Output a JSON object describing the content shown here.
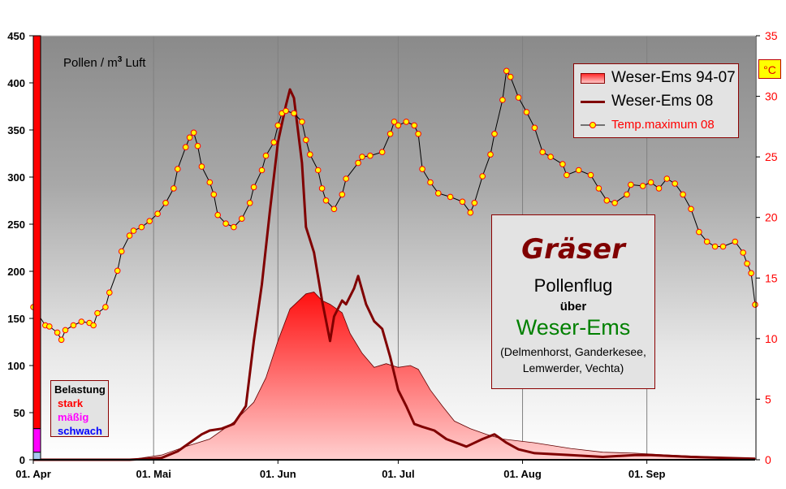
{
  "chart_data": {
    "type": "area+line",
    "ylabel_left": "Pollen / m³ Luft",
    "ylabel_left_parts": {
      "pre": "Pollen / m",
      "sup": "3",
      "post": " Luft"
    },
    "ylim_left": [
      0,
      450
    ],
    "yticks_left": [
      0,
      50,
      100,
      150,
      200,
      250,
      300,
      350,
      400,
      450
    ],
    "ylabel_right": "°C",
    "ylim_right": [
      0,
      35
    ],
    "yticks_right": [
      0,
      5,
      10,
      15,
      20,
      25,
      30,
      35
    ],
    "xlim": [
      "2008-04-01",
      "2008-09-28"
    ],
    "xticks": [
      {
        "date": "2008-04-01",
        "label": "01. Apr"
      },
      {
        "date": "2008-05-01",
        "label": "01. Mai"
      },
      {
        "date": "2008-06-01",
        "label": "01. Jun"
      },
      {
        "date": "2008-07-01",
        "label": "01. Jul"
      },
      {
        "date": "2008-08-01",
        "label": "01. Aug"
      },
      {
        "date": "2008-09-01",
        "label": "01. Sep"
      }
    ],
    "grid": "vertical at month starts",
    "legend_position": "top-right",
    "series": [
      {
        "name": "Weser-Ems 94-07",
        "type": "area",
        "axis": "left",
        "color": "#ff2020",
        "points": [
          [
            "2008-04-01",
            0
          ],
          [
            "2008-04-25",
            0
          ],
          [
            "2008-05-03",
            5
          ],
          [
            "2008-05-09",
            14
          ],
          [
            "2008-05-15",
            22
          ],
          [
            "2008-05-21",
            40
          ],
          [
            "2008-05-26",
            61
          ],
          [
            "2008-05-29",
            87
          ],
          [
            "2008-06-01",
            126
          ],
          [
            "2008-06-04",
            160
          ],
          [
            "2008-06-06",
            168
          ],
          [
            "2008-06-08",
            176
          ],
          [
            "2008-06-10",
            178
          ],
          [
            "2008-06-12",
            169
          ],
          [
            "2008-06-14",
            165
          ],
          [
            "2008-06-17",
            156
          ],
          [
            "2008-06-19",
            134
          ],
          [
            "2008-06-22",
            113
          ],
          [
            "2008-06-25",
            98
          ],
          [
            "2008-06-28",
            102
          ],
          [
            "2008-07-01",
            98
          ],
          [
            "2008-07-04",
            100
          ],
          [
            "2008-07-06",
            96
          ],
          [
            "2008-07-09",
            74
          ],
          [
            "2008-07-12",
            57
          ],
          [
            "2008-07-15",
            41
          ],
          [
            "2008-07-19",
            33
          ],
          [
            "2008-07-23",
            27
          ],
          [
            "2008-07-27",
            22
          ],
          [
            "2008-08-04",
            18
          ],
          [
            "2008-08-13",
            12
          ],
          [
            "2008-08-21",
            8
          ],
          [
            "2008-08-29",
            7
          ],
          [
            "2008-09-06",
            5
          ],
          [
            "2008-09-23",
            2
          ],
          [
            "2008-09-28",
            1
          ]
        ]
      },
      {
        "name": "Weser-Ems 08",
        "type": "line",
        "axis": "left",
        "color": "#800000",
        "points": [
          [
            "2008-04-01",
            0
          ],
          [
            "2008-04-25",
            0
          ],
          [
            "2008-05-03",
            2
          ],
          [
            "2008-05-07",
            9
          ],
          [
            "2008-05-10",
            18
          ],
          [
            "2008-05-13",
            27
          ],
          [
            "2008-05-15",
            31
          ],
          [
            "2008-05-18",
            33
          ],
          [
            "2008-05-21",
            38
          ],
          [
            "2008-05-24",
            57
          ],
          [
            "2008-05-26",
            126
          ],
          [
            "2008-05-28",
            186
          ],
          [
            "2008-05-30",
            264
          ],
          [
            "2008-06-01",
            337
          ],
          [
            "2008-06-03",
            376
          ],
          [
            "2008-06-04",
            393
          ],
          [
            "2008-06-05",
            384
          ],
          [
            "2008-06-07",
            315
          ],
          [
            "2008-06-08",
            247
          ],
          [
            "2008-06-10",
            220
          ],
          [
            "2008-06-12",
            169
          ],
          [
            "2008-06-14",
            126
          ],
          [
            "2008-06-15",
            152
          ],
          [
            "2008-06-17",
            169
          ],
          [
            "2008-06-18",
            165
          ],
          [
            "2008-06-20",
            182
          ],
          [
            "2008-06-21",
            195
          ],
          [
            "2008-06-23",
            165
          ],
          [
            "2008-06-25",
            147
          ],
          [
            "2008-06-27",
            139
          ],
          [
            "2008-06-29",
            109
          ],
          [
            "2008-07-01",
            74
          ],
          [
            "2008-07-03",
            57
          ],
          [
            "2008-07-05",
            38
          ],
          [
            "2008-07-07",
            35
          ],
          [
            "2008-07-10",
            31
          ],
          [
            "2008-07-13",
            22
          ],
          [
            "2008-07-18",
            14
          ],
          [
            "2008-07-22",
            22
          ],
          [
            "2008-07-25",
            27
          ],
          [
            "2008-07-28",
            18
          ],
          [
            "2008-07-31",
            11
          ],
          [
            "2008-08-04",
            7
          ],
          [
            "2008-08-13",
            5
          ],
          [
            "2008-08-21",
            3
          ],
          [
            "2008-08-29",
            5
          ],
          [
            "2008-09-02",
            5
          ],
          [
            "2008-09-12",
            3
          ],
          [
            "2008-09-28",
            1
          ]
        ]
      },
      {
        "name": "Temp.maximum 08",
        "type": "line-markers",
        "axis": "right",
        "color": "#000000",
        "marker_fill": "#ffff00",
        "marker_stroke": "#ff0000",
        "points": [
          [
            "2008-04-01",
            12.6
          ],
          [
            "2008-04-02",
            12.1
          ],
          [
            "2008-04-04",
            11.1
          ],
          [
            "2008-04-05",
            11.0
          ],
          [
            "2008-04-07",
            10.5
          ],
          [
            "2008-04-08",
            9.9
          ],
          [
            "2008-04-09",
            10.7
          ],
          [
            "2008-04-11",
            11.1
          ],
          [
            "2008-04-13",
            11.4
          ],
          [
            "2008-04-15",
            11.3
          ],
          [
            "2008-04-16",
            11.1
          ],
          [
            "2008-04-17",
            12.1
          ],
          [
            "2008-04-19",
            12.6
          ],
          [
            "2008-04-20",
            13.8
          ],
          [
            "2008-04-22",
            15.6
          ],
          [
            "2008-04-23",
            17.2
          ],
          [
            "2008-04-25",
            18.5
          ],
          [
            "2008-04-26",
            18.9
          ],
          [
            "2008-04-28",
            19.2
          ],
          [
            "2008-04-30",
            19.7
          ],
          [
            "2008-05-02",
            20.3
          ],
          [
            "2008-05-04",
            21.2
          ],
          [
            "2008-05-06",
            22.4
          ],
          [
            "2008-05-07",
            24.0
          ],
          [
            "2008-05-09",
            25.8
          ],
          [
            "2008-05-10",
            26.6
          ],
          [
            "2008-05-11",
            27.0
          ],
          [
            "2008-05-12",
            25.9
          ],
          [
            "2008-05-13",
            24.2
          ],
          [
            "2008-05-15",
            22.9
          ],
          [
            "2008-05-16",
            21.9
          ],
          [
            "2008-05-17",
            20.2
          ],
          [
            "2008-05-19",
            19.5
          ],
          [
            "2008-05-21",
            19.2
          ],
          [
            "2008-05-23",
            19.9
          ],
          [
            "2008-05-25",
            21.2
          ],
          [
            "2008-05-26",
            22.5
          ],
          [
            "2008-05-28",
            23.9
          ],
          [
            "2008-05-29",
            25.1
          ],
          [
            "2008-05-31",
            26.2
          ],
          [
            "2008-06-01",
            27.6
          ],
          [
            "2008-06-02",
            28.6
          ],
          [
            "2008-06-03",
            28.8
          ],
          [
            "2008-06-05",
            28.6
          ],
          [
            "2008-06-07",
            27.9
          ],
          [
            "2008-06-08",
            26.4
          ],
          [
            "2008-06-09",
            25.2
          ],
          [
            "2008-06-11",
            23.9
          ],
          [
            "2008-06-12",
            22.4
          ],
          [
            "2008-06-13",
            21.4
          ],
          [
            "2008-06-15",
            20.7
          ],
          [
            "2008-06-17",
            21.9
          ],
          [
            "2008-06-18",
            23.2
          ],
          [
            "2008-06-21",
            24.5
          ],
          [
            "2008-06-22",
            25.0
          ],
          [
            "2008-06-24",
            25.1
          ],
          [
            "2008-06-27",
            25.4
          ],
          [
            "2008-06-29",
            26.9
          ],
          [
            "2008-06-30",
            27.9
          ],
          [
            "2008-07-01",
            27.6
          ],
          [
            "2008-07-03",
            27.9
          ],
          [
            "2008-07-05",
            27.6
          ],
          [
            "2008-07-06",
            26.9
          ],
          [
            "2008-07-07",
            24.0
          ],
          [
            "2008-07-09",
            22.9
          ],
          [
            "2008-07-11",
            22.0
          ],
          [
            "2008-07-14",
            21.7
          ],
          [
            "2008-07-17",
            21.3
          ],
          [
            "2008-07-19",
            20.4
          ],
          [
            "2008-07-20",
            21.2
          ],
          [
            "2008-07-22",
            23.4
          ],
          [
            "2008-07-24",
            25.2
          ],
          [
            "2008-07-25",
            26.9
          ],
          [
            "2008-07-27",
            29.7
          ],
          [
            "2008-07-28",
            32.1
          ],
          [
            "2008-07-29",
            31.6
          ],
          [
            "2008-07-31",
            29.9
          ],
          [
            "2008-08-02",
            28.7
          ],
          [
            "2008-08-04",
            27.4
          ],
          [
            "2008-08-06",
            25.4
          ],
          [
            "2008-08-08",
            25.0
          ],
          [
            "2008-08-11",
            24.4
          ],
          [
            "2008-08-12",
            23.5
          ],
          [
            "2008-08-15",
            23.9
          ],
          [
            "2008-08-18",
            23.5
          ],
          [
            "2008-08-20",
            22.4
          ],
          [
            "2008-08-22",
            21.4
          ],
          [
            "2008-08-24",
            21.2
          ],
          [
            "2008-08-27",
            21.9
          ],
          [
            "2008-08-28",
            22.7
          ],
          [
            "2008-08-31",
            22.6
          ],
          [
            "2008-09-02",
            22.9
          ],
          [
            "2008-09-04",
            22.4
          ],
          [
            "2008-09-06",
            23.2
          ],
          [
            "2008-09-08",
            22.8
          ],
          [
            "2008-09-10",
            21.9
          ],
          [
            "2008-09-12",
            20.7
          ],
          [
            "2008-09-14",
            18.8
          ],
          [
            "2008-09-16",
            18.0
          ],
          [
            "2008-09-18",
            17.6
          ],
          [
            "2008-09-20",
            17.6
          ],
          [
            "2008-09-23",
            18.0
          ],
          [
            "2008-09-25",
            17.1
          ],
          [
            "2008-09-26",
            16.2
          ],
          [
            "2008-09-27",
            15.4
          ],
          [
            "2008-09-28",
            12.8
          ]
        ]
      }
    ],
    "load_scale": {
      "title": "Belastung",
      "levels": [
        {
          "label": "stark",
          "from": 33,
          "to": 450,
          "color": "#ff0000"
        },
        {
          "label": "mäßig",
          "from": 8,
          "to": 33,
          "color": "#ff00ff"
        },
        {
          "label": "schwach",
          "from": 0,
          "to": 8,
          "color": "#0000ff",
          "bar_color": "#a8c8f0"
        }
      ]
    }
  },
  "info": {
    "title": "Gräser",
    "line1": "Pollenflug",
    "line2": "über",
    "region": "Weser-Ems",
    "places": "(Delmenhorst, Ganderkesee, Lemwerder, Vechta)"
  }
}
